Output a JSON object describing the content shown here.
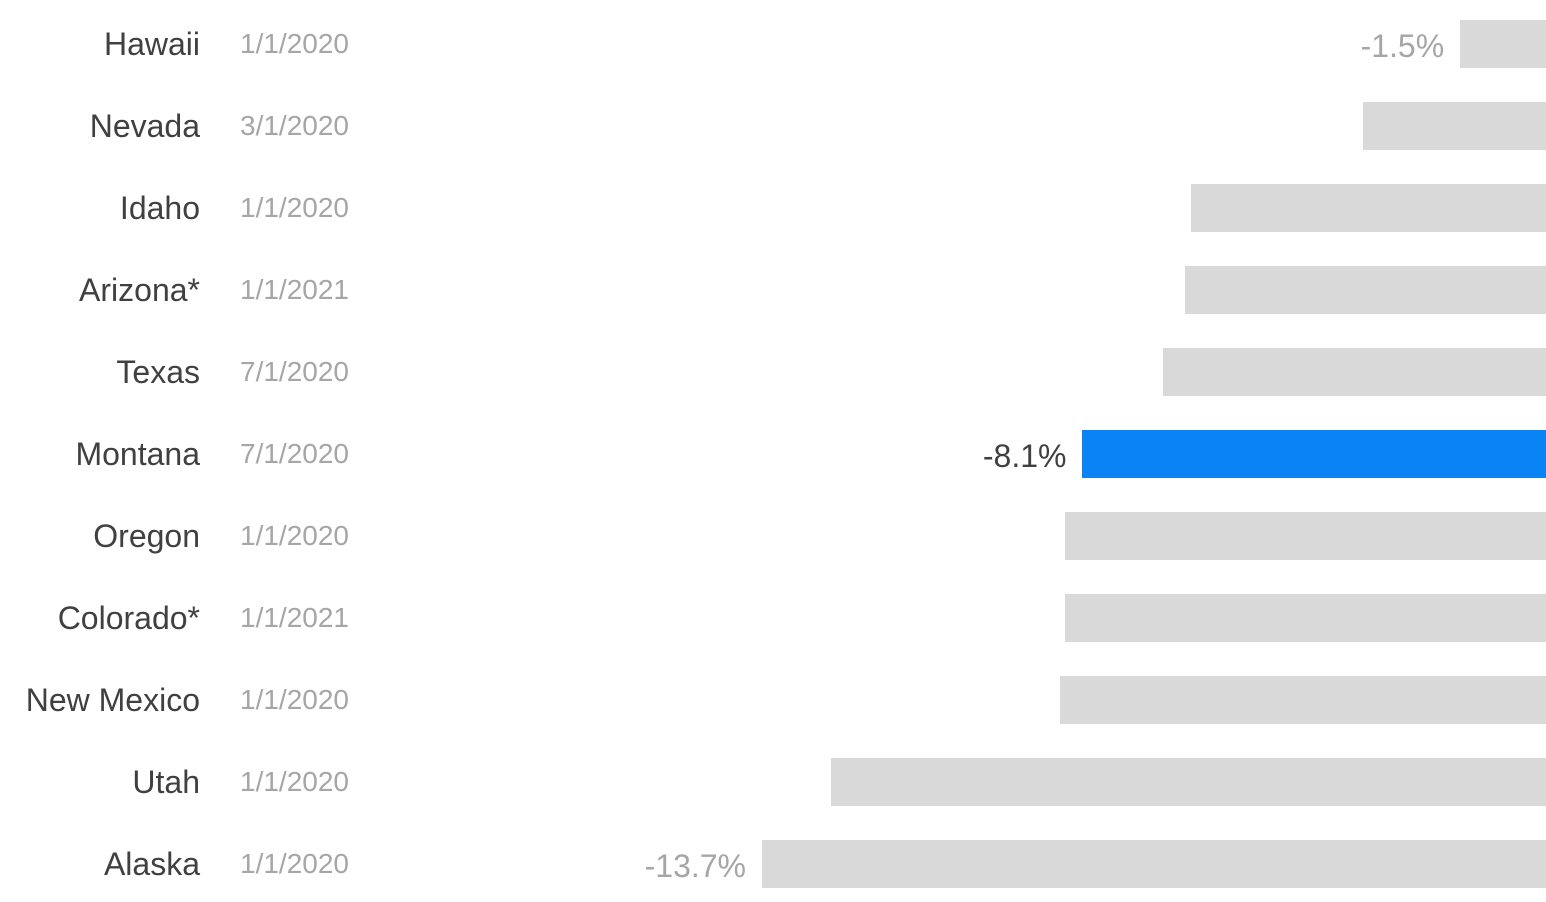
{
  "chart_data": {
    "type": "bar",
    "orientation": "horizontal",
    "categories": [
      "Hawaii",
      "Nevada",
      "Idaho",
      "Arizona*",
      "Texas",
      "Montana",
      "Oregon",
      "Colorado*",
      "New Mexico",
      "Utah",
      "Alaska"
    ],
    "dates": [
      "1/1/2020",
      "3/1/2020",
      "1/1/2020",
      "1/1/2021",
      "7/1/2020",
      "7/1/2020",
      "1/1/2020",
      "1/1/2021",
      "1/1/2020",
      "1/1/2020",
      "1/1/2020"
    ],
    "values": [
      -1.5,
      -3.2,
      -6.2,
      -6.3,
      -6.7,
      -8.1,
      -8.4,
      -8.4,
      -8.5,
      -12.5,
      -13.7
    ],
    "value_labels": [
      "-1.5%",
      "",
      "",
      "",
      "",
      "-8.1%",
      "",
      "",
      "",
      "",
      "-13.7%"
    ],
    "highlight": "Montana",
    "bar_color": "#d9d9d9",
    "highlight_color": "#0a84f5",
    "label_color_default": "#a6a6a6",
    "label_color_highlight": "#404040",
    "xlim": [
      -13.7,
      0
    ]
  }
}
